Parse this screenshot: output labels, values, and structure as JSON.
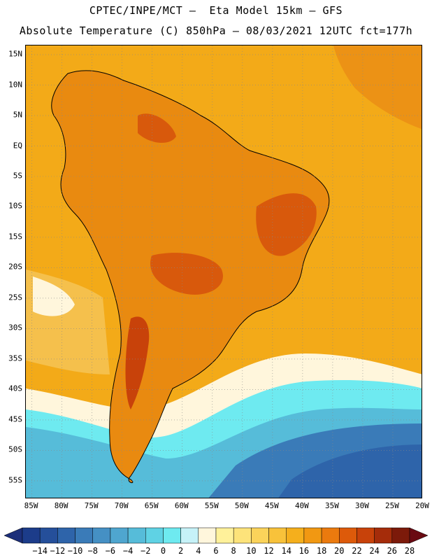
{
  "header": {
    "line1": "CPTEC/INPE/MCT –  Eta Model 15km – GFS",
    "line2": "Absolute Temperature (C) 850hPa – 08/03/2021 12UTC fct=177h"
  },
  "axes": {
    "lat_labels": [
      "15N",
      "10N",
      "5N",
      "EQ",
      "5S",
      "10S",
      "15S",
      "20S",
      "25S",
      "30S",
      "35S",
      "40S",
      "45S",
      "50S",
      "55S"
    ],
    "lat_values": [
      15,
      10,
      5,
      0,
      -5,
      -10,
      -15,
      -20,
      -25,
      -30,
      -35,
      -40,
      -45,
      -50,
      -55
    ],
    "lon_labels": [
      "85W",
      "80W",
      "75W",
      "70W",
      "65W",
      "60W",
      "55W",
      "50W",
      "45W",
      "40W",
      "35W",
      "30W",
      "25W",
      "20W"
    ],
    "lon_values": [
      -85,
      -80,
      -75,
      -70,
      -65,
      -60,
      -55,
      -50,
      -45,
      -40,
      -35,
      -30,
      -25,
      -20
    ],
    "lat_range": [
      -58,
      16.5
    ],
    "lon_range": [
      -86,
      -20
    ],
    "grid": true
  },
  "colorbar": {
    "labels": [
      "-14",
      "-12",
      "-10",
      "-8",
      "-6",
      "-4",
      "-2",
      "0",
      "2",
      "4",
      "6",
      "8",
      "10",
      "12",
      "14",
      "16",
      "18",
      "20",
      "22",
      "24",
      "26",
      "28"
    ],
    "colors": [
      "#1c3c8a",
      "#254f9a",
      "#2e64aa",
      "#3a7bb8",
      "#4590c4",
      "#4fa6cf",
      "#56bcd9",
      "#5fd2e4",
      "#6eeaf0",
      "#c6f2f8",
      "#fff6dc",
      "#fff19a",
      "#fde37a",
      "#fbd35a",
      "#f8c23a",
      "#f5af1c",
      "#f19812",
      "#eb7a0e",
      "#dd5a0a",
      "#c8420a",
      "#a52c0a",
      "#7c1a0a"
    ]
  },
  "map": {
    "ocean_color": "#f3aa18",
    "land_color": "#eb9a12"
  }
}
